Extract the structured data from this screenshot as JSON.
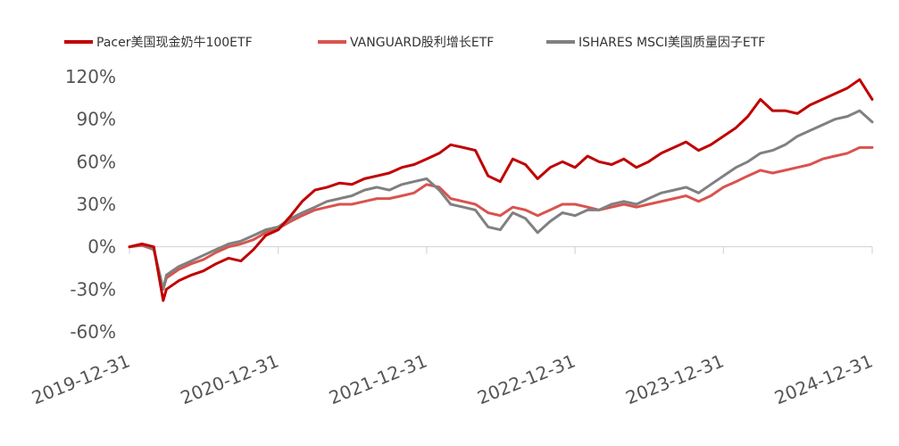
{
  "chart_data": {
    "type": "line",
    "title": "",
    "xlabel": "",
    "ylabel": "",
    "x_tick_labels": [
      "2019-12-31",
      "2020-12-31",
      "2021-12-31",
      "2022-12-31",
      "2023-12-31",
      "2024-12-31"
    ],
    "y_tick_labels": [
      "120%",
      "90%",
      "60%",
      "30%",
      "0%",
      "-30%",
      "-60%"
    ],
    "y_ticks": [
      120,
      90,
      60,
      30,
      0,
      -30,
      -60
    ],
    "ylim": [
      -60,
      120
    ],
    "y_unit": "%",
    "legend_position": "top",
    "grid": false,
    "x": [
      "2019-12-31",
      "2020-01-31",
      "2020-02-29",
      "2020-03-23",
      "2020-03-31",
      "2020-04-30",
      "2020-05-31",
      "2020-06-30",
      "2020-07-31",
      "2020-08-31",
      "2020-09-30",
      "2020-10-31",
      "2020-11-30",
      "2020-12-31",
      "2021-01-31",
      "2021-02-28",
      "2021-03-31",
      "2021-04-30",
      "2021-05-31",
      "2021-06-30",
      "2021-07-31",
      "2021-08-31",
      "2021-09-30",
      "2021-10-31",
      "2021-11-30",
      "2021-12-31",
      "2022-01-31",
      "2022-02-28",
      "2022-03-31",
      "2022-04-30",
      "2022-05-31",
      "2022-06-30",
      "2022-07-31",
      "2022-08-31",
      "2022-09-30",
      "2022-10-31",
      "2022-11-30",
      "2022-12-31",
      "2023-01-31",
      "2023-02-28",
      "2023-03-31",
      "2023-04-30",
      "2023-05-31",
      "2023-06-30",
      "2023-07-31",
      "2023-08-31",
      "2023-09-30",
      "2023-10-31",
      "2023-11-30",
      "2023-12-31",
      "2024-01-31",
      "2024-02-29",
      "2024-03-31",
      "2024-04-30",
      "2024-05-31",
      "2024-06-30",
      "2024-07-31",
      "2024-08-31",
      "2024-09-30",
      "2024-10-31",
      "2024-11-30",
      "2024-12-31"
    ],
    "series": [
      {
        "name": "Pacer美国现金奶牛100ETF",
        "color": "#c00000",
        "values": [
          0,
          2,
          0,
          -38,
          -30,
          -24,
          -20,
          -17,
          -12,
          -8,
          -10,
          -2,
          8,
          12,
          22,
          32,
          40,
          42,
          45,
          44,
          48,
          50,
          52,
          56,
          58,
          62,
          66,
          72,
          70,
          68,
          50,
          46,
          62,
          58,
          48,
          56,
          60,
          56,
          64,
          60,
          58,
          62,
          56,
          60,
          66,
          70,
          74,
          68,
          72,
          78,
          84,
          92,
          104,
          96,
          96,
          94,
          100,
          104,
          108,
          112,
          118,
          104
        ]
      },
      {
        "name": "VANGUARD股利增长ETF",
        "color": "#d9534f",
        "values": [
          0,
          1,
          -2,
          -30,
          -22,
          -16,
          -12,
          -9,
          -4,
          0,
          2,
          5,
          10,
          13,
          18,
          22,
          26,
          28,
          30,
          30,
          32,
          34,
          34,
          36,
          38,
          44,
          42,
          34,
          32,
          30,
          24,
          22,
          28,
          26,
          22,
          26,
          30,
          30,
          28,
          26,
          28,
          30,
          28,
          30,
          32,
          34,
          36,
          32,
          36,
          42,
          46,
          50,
          54,
          52,
          54,
          56,
          58,
          62,
          64,
          66,
          70,
          70
        ]
      },
      {
        "name": "ISHARES MSCI美国质量因子ETF",
        "color": "#808080",
        "values": [
          0,
          2,
          -2,
          -30,
          -20,
          -14,
          -10,
          -6,
          -2,
          2,
          4,
          8,
          12,
          14,
          20,
          24,
          28,
          32,
          34,
          36,
          40,
          42,
          40,
          44,
          46,
          48,
          40,
          30,
          28,
          26,
          14,
          12,
          24,
          20,
          10,
          18,
          24,
          22,
          26,
          26,
          30,
          32,
          30,
          34,
          38,
          40,
          42,
          38,
          44,
          50,
          56,
          60,
          66,
          68,
          72,
          78,
          82,
          86,
          90,
          92,
          96,
          88
        ]
      }
    ]
  }
}
